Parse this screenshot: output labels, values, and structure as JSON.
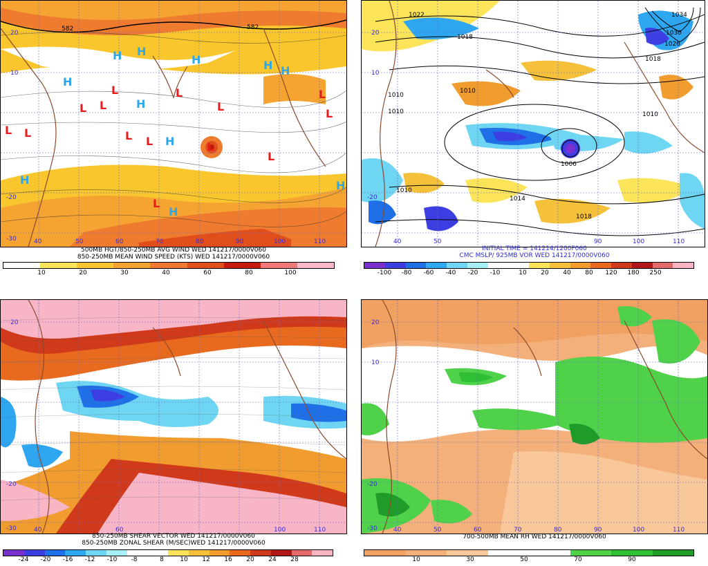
{
  "colors": {
    "wind": [
      "#ffffff",
      "#fbe35a",
      "#f9c72d",
      "#f5a431",
      "#ef7c2e",
      "#e04e1c",
      "#c31a0b",
      "#f07a7a",
      "#f4b8c8"
    ],
    "vor": [
      "#7a2fd1",
      "#3d3ee1",
      "#1f6fe6",
      "#2fa7f0",
      "#6ed6f2",
      "#a8eef6",
      "#ffffff",
      "#ffffff",
      "#fbe35a",
      "#f5c13a",
      "#f19c2e",
      "#e86a1e",
      "#d0391a",
      "#b21515",
      "#e36a6a",
      "#f7b5c6"
    ],
    "shear": [
      "#7a2fd1",
      "#3d3ee1",
      "#1f6fe6",
      "#2fa7f0",
      "#6ed6f2",
      "#a8eef6",
      "#ffffff",
      "#ffffff",
      "#fbe35a",
      "#f5c13a",
      "#f19c2e",
      "#e86a1e",
      "#d0391a",
      "#b21515",
      "#e36a6a",
      "#f7b5c6"
    ],
    "rh": [
      "#f0a060",
      "#f3b07a",
      "#f8c79a",
      "#ffffff",
      "#ffffff",
      "#4fd14a",
      "#2fbf34",
      "#1f9b2a"
    ]
  },
  "panels": [
    {
      "id": "wind",
      "title_line1": "500MB HGT/850-250MB AVG WIND WED 141217/0000V060",
      "title_line2": "850-250MB MEAN WIND SPEED (KTS) WED 141217/0000V060",
      "legend_ticks": [
        "10",
        "20",
        "30",
        "40",
        "60",
        "80",
        "100"
      ],
      "lon_labels": [
        "30",
        "40",
        "50",
        "60",
        "70",
        "80",
        "90",
        "100",
        "110"
      ],
      "lat_labels": [
        "20",
        "10",
        "0",
        "-10",
        "-20",
        "-30"
      ],
      "contour_labels": [
        "582",
        "582"
      ],
      "H_marks": [
        "H",
        "H",
        "H",
        "H",
        "H",
        "H",
        "H",
        "H",
        "H",
        "H",
        "H",
        "H"
      ],
      "L_marks": [
        "L",
        "L",
        "L",
        "L",
        "L",
        "L",
        "L",
        "L",
        "L",
        "L",
        "L",
        "L",
        "L",
        "L"
      ]
    },
    {
      "id": "vor",
      "title_line1": "INITIAL TIME = 141214/1200F060",
      "title_line2": "CMC MSLP/ 925MB VOR WED 141217/0000V060",
      "legend_ticks": [
        "-100",
        "-80",
        "-60",
        "-40",
        "-20",
        "-10",
        "10",
        "20",
        "40",
        "80",
        "120",
        "180",
        "250"
      ],
      "lon_labels": [
        "30",
        "40",
        "50",
        "60",
        "70",
        "80",
        "90",
        "100",
        "110"
      ],
      "lat_labels": [
        "20",
        "10",
        "0",
        "-10",
        "-20",
        "-30"
      ],
      "isobar_labels": [
        "1022",
        "1018",
        "1010",
        "1010",
        "1010",
        "1006",
        "1014",
        "1018",
        "1010",
        "1034",
        "1030",
        "1026",
        "1018",
        "1010",
        "1018"
      ]
    },
    {
      "id": "shear",
      "title_line1": "850-250MB SHEAR VECTOR WED 141217/0000V060",
      "title_line2": "850-250MB ZONAL SHEAR (M/SEC)WED 141217/0000V060",
      "legend_ticks": [
        "-24",
        "-20",
        "-16",
        "-12",
        "-10",
        "-8",
        "8",
        "10",
        "12",
        "16",
        "20",
        "24",
        "28"
      ],
      "lon_labels": [
        "30",
        "40",
        "50",
        "60",
        "70",
        "80",
        "90",
        "100",
        "110"
      ],
      "lat_labels": [
        "20",
        "10",
        "0",
        "-10",
        "-20",
        "-30"
      ]
    },
    {
      "id": "rh",
      "title_line1": "700-500MB MEAN RH WED 141217/0000V060",
      "legend_ticks": [
        "10",
        "30",
        "50",
        "70",
        "90"
      ],
      "lon_labels": [
        "30",
        "40",
        "50",
        "60",
        "70",
        "80",
        "90",
        "100",
        "110"
      ],
      "lat_labels": [
        "20",
        "10",
        "0",
        "-10",
        "-20",
        "-30"
      ]
    }
  ]
}
